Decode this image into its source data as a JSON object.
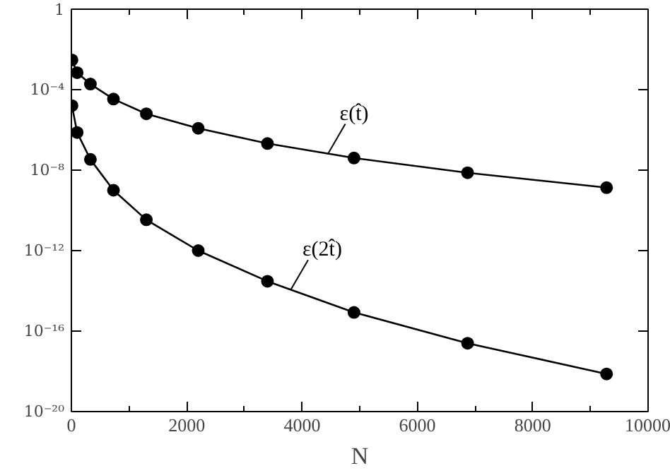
{
  "chart_data": {
    "type": "line",
    "xlabel": "N",
    "log": "y",
    "grid": false,
    "marker": "circle",
    "line_style": "solid",
    "xlim": [
      0,
      10000
    ],
    "xticks": [
      0,
      2000,
      4000,
      6000,
      8000,
      10000
    ],
    "ylim": [
      1e-20,
      1
    ],
    "yticks": [
      {
        "value": 1e-20,
        "label": "10⁻²⁰"
      },
      {
        "value": 1e-16,
        "label": "10⁻¹⁶"
      },
      {
        "value": 1e-12,
        "label": "10⁻¹²"
      },
      {
        "value": 1e-08,
        "label": "10⁻⁸"
      },
      {
        "value": 0.0001,
        "label": "10⁻⁴"
      },
      {
        "value": 1,
        "label": "1"
      }
    ],
    "x": [
      10,
      100,
      330,
      730,
      1300,
      2200,
      3400,
      4900,
      6870,
      9280
    ],
    "series": [
      {
        "name": "ε(t̂)",
        "color": "#000000",
        "values": [
          0.003,
          0.0007,
          0.00019,
          3.4e-05,
          6.3e-06,
          1.2e-06,
          2.1e-07,
          4e-08,
          7.4e-09,
          1.35e-09
        ]
      },
      {
        "name": "ε(2t̂)",
        "color": "#000000",
        "values": [
          1.6e-05,
          7.4e-07,
          3.4e-08,
          1e-09,
          3.4e-11,
          1e-12,
          3e-14,
          8.5e-16,
          2.5e-17,
          7.4e-19
        ]
      }
    ]
  }
}
